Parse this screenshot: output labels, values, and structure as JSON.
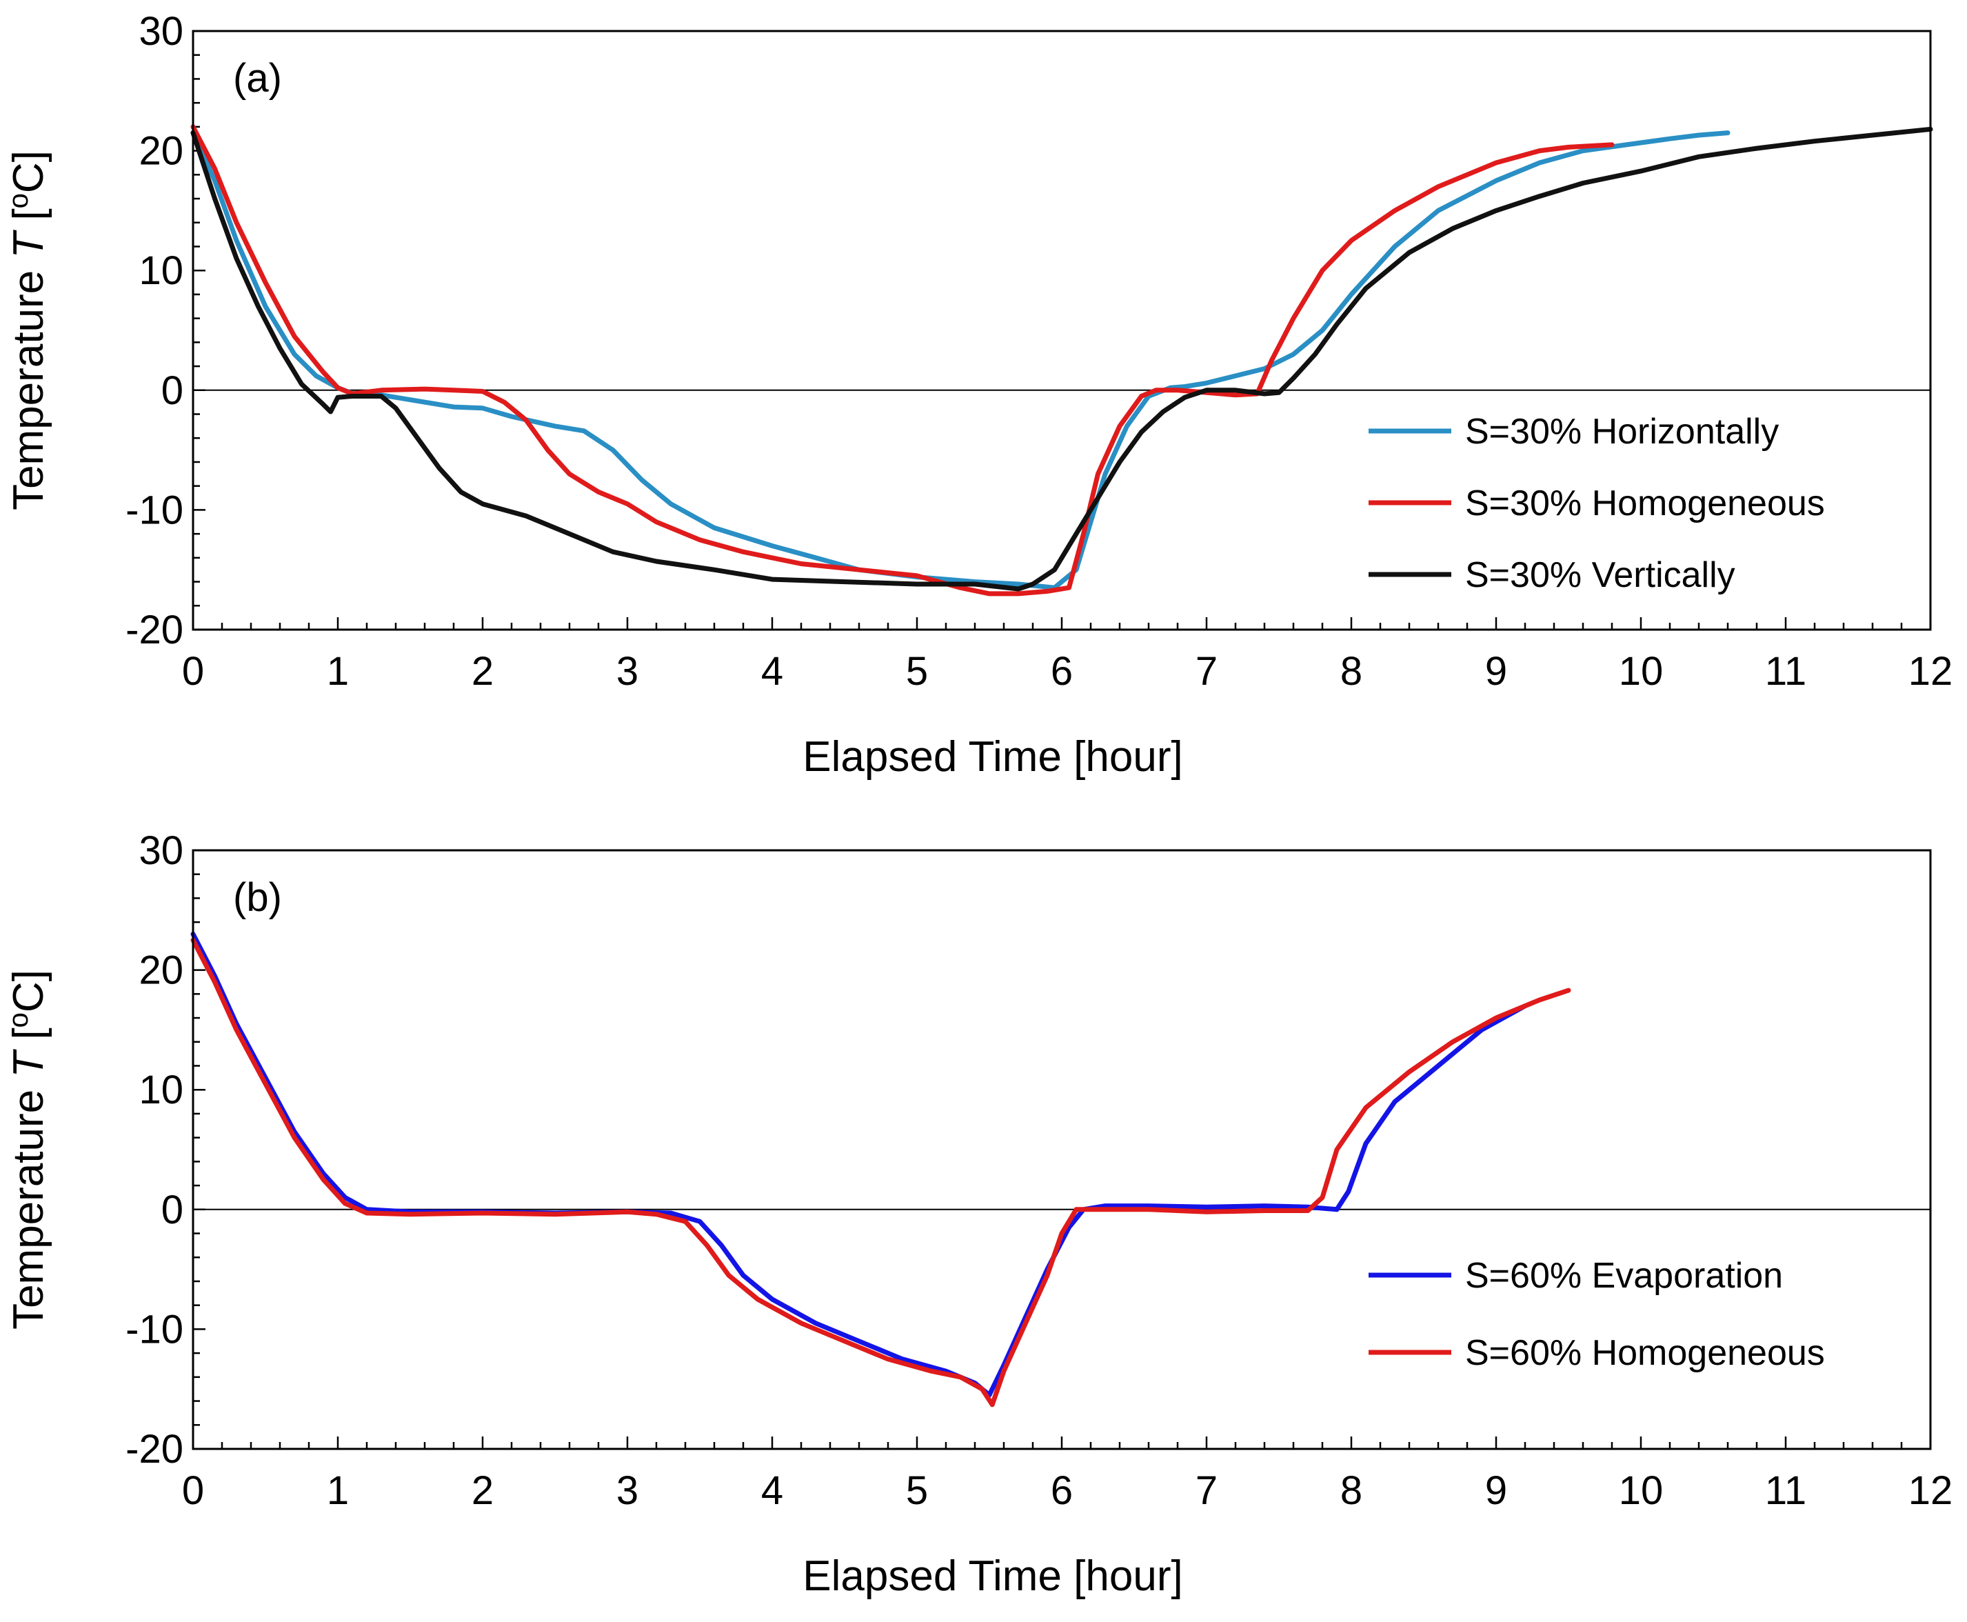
{
  "chart_data": [
    {
      "type": "line",
      "panel_label": "(a)",
      "xlabel": "Elapsed Time [hour]",
      "ylabel_prefix": "Temperature ",
      "ylabel_var": "T",
      "ylabel_unit_open": " [",
      "ylabel_unit_sup": "o",
      "ylabel_unit_close": "C]",
      "xlim": [
        0,
        12
      ],
      "ylim": [
        -20,
        30
      ],
      "xticks": [
        0,
        1,
        2,
        3,
        4,
        5,
        6,
        7,
        8,
        9,
        10,
        11,
        12
      ],
      "yticks": [
        -20,
        -10,
        0,
        10,
        20,
        30
      ],
      "zero_line": true,
      "legend_position": "right",
      "series": [
        {
          "name": "S=30% Horizontally",
          "color": "#2a8fc5",
          "points": [
            [
              0,
              21.5
            ],
            [
              0.15,
              17.5
            ],
            [
              0.3,
              12.5
            ],
            [
              0.5,
              7
            ],
            [
              0.7,
              3
            ],
            [
              0.85,
              1.2
            ],
            [
              1.0,
              0.2
            ],
            [
              1.15,
              -0.5
            ],
            [
              1.3,
              -0.4
            ],
            [
              1.5,
              -0.8
            ],
            [
              1.8,
              -1.4
            ],
            [
              2.0,
              -1.5
            ],
            [
              2.2,
              -2.2
            ],
            [
              2.5,
              -3
            ],
            [
              2.7,
              -3.4
            ],
            [
              2.9,
              -5
            ],
            [
              3.1,
              -7.5
            ],
            [
              3.3,
              -9.5
            ],
            [
              3.6,
              -11.5
            ],
            [
              4.0,
              -13
            ],
            [
              4.3,
              -14
            ],
            [
              4.6,
              -15
            ],
            [
              5.0,
              -15.6
            ],
            [
              5.4,
              -16
            ],
            [
              5.7,
              -16.2
            ],
            [
              5.95,
              -16.5
            ],
            [
              6.1,
              -15
            ],
            [
              6.2,
              -11
            ],
            [
              6.3,
              -7
            ],
            [
              6.45,
              -3
            ],
            [
              6.6,
              -0.5
            ],
            [
              6.75,
              0.2
            ],
            [
              6.85,
              0.3
            ],
            [
              7.0,
              0.6
            ],
            [
              7.2,
              1.2
            ],
            [
              7.4,
              1.8
            ],
            [
              7.6,
              3
            ],
            [
              7.8,
              5
            ],
            [
              8.0,
              8
            ],
            [
              8.3,
              12
            ],
            [
              8.6,
              15
            ],
            [
              9.0,
              17.5
            ],
            [
              9.3,
              19
            ],
            [
              9.6,
              20
            ],
            [
              9.9,
              20.5
            ],
            [
              10.2,
              21
            ],
            [
              10.4,
              21.3
            ],
            [
              10.6,
              21.5
            ]
          ]
        },
        {
          "name": "S=30% Homogeneous",
          "color": "#e01b1b",
          "points": [
            [
              0,
              22
            ],
            [
              0.15,
              18.5
            ],
            [
              0.3,
              14
            ],
            [
              0.5,
              9
            ],
            [
              0.7,
              4.5
            ],
            [
              0.9,
              1.5
            ],
            [
              1.0,
              0.2
            ],
            [
              1.1,
              -0.3
            ],
            [
              1.3,
              0
            ],
            [
              1.6,
              0.1
            ],
            [
              1.8,
              0
            ],
            [
              2.0,
              -0.1
            ],
            [
              2.15,
              -1
            ],
            [
              2.3,
              -2.5
            ],
            [
              2.45,
              -5
            ],
            [
              2.6,
              -7
            ],
            [
              2.8,
              -8.5
            ],
            [
              3.0,
              -9.5
            ],
            [
              3.2,
              -11
            ],
            [
              3.5,
              -12.5
            ],
            [
              3.8,
              -13.5
            ],
            [
              4.2,
              -14.5
            ],
            [
              4.6,
              -15
            ],
            [
              5.0,
              -15.5
            ],
            [
              5.3,
              -16.5
            ],
            [
              5.5,
              -17
            ],
            [
              5.7,
              -17
            ],
            [
              5.9,
              -16.8
            ],
            [
              6.05,
              -16.5
            ],
            [
              6.15,
              -12
            ],
            [
              6.25,
              -7
            ],
            [
              6.4,
              -3
            ],
            [
              6.55,
              -0.5
            ],
            [
              6.65,
              0
            ],
            [
              6.8,
              0
            ],
            [
              7.0,
              -0.2
            ],
            [
              7.2,
              -0.4
            ],
            [
              7.35,
              -0.3
            ],
            [
              7.45,
              2.5
            ],
            [
              7.6,
              6
            ],
            [
              7.8,
              10
            ],
            [
              8.0,
              12.5
            ],
            [
              8.3,
              15
            ],
            [
              8.6,
              17
            ],
            [
              9.0,
              19
            ],
            [
              9.3,
              20
            ],
            [
              9.5,
              20.3
            ],
            [
              9.8,
              20.5
            ]
          ]
        },
        {
          "name": "S=30% Vertically",
          "color": "#111111",
          "points": [
            [
              0,
              21.5
            ],
            [
              0.15,
              16
            ],
            [
              0.3,
              11
            ],
            [
              0.45,
              7
            ],
            [
              0.6,
              3.5
            ],
            [
              0.75,
              0.5
            ],
            [
              0.9,
              -1.2
            ],
            [
              0.95,
              -1.8
            ],
            [
              1.0,
              -0.6
            ],
            [
              1.1,
              -0.5
            ],
            [
              1.3,
              -0.5
            ],
            [
              1.4,
              -1.5
            ],
            [
              1.55,
              -4
            ],
            [
              1.7,
              -6.5
            ],
            [
              1.85,
              -8.5
            ],
            [
              2.0,
              -9.5
            ],
            [
              2.3,
              -10.5
            ],
            [
              2.6,
              -12
            ],
            [
              2.9,
              -13.5
            ],
            [
              3.2,
              -14.3
            ],
            [
              3.6,
              -15
            ],
            [
              4.0,
              -15.8
            ],
            [
              4.5,
              -16
            ],
            [
              5.0,
              -16.2
            ],
            [
              5.4,
              -16.2
            ],
            [
              5.7,
              -16.6
            ],
            [
              5.8,
              -16.2
            ],
            [
              5.95,
              -15
            ],
            [
              6.1,
              -12
            ],
            [
              6.25,
              -9
            ],
            [
              6.4,
              -6
            ],
            [
              6.55,
              -3.5
            ],
            [
              6.7,
              -1.8
            ],
            [
              6.85,
              -0.6
            ],
            [
              7.0,
              0
            ],
            [
              7.2,
              0
            ],
            [
              7.4,
              -0.3
            ],
            [
              7.5,
              -0.2
            ],
            [
              7.6,
              1
            ],
            [
              7.75,
              3
            ],
            [
              7.9,
              5.5
            ],
            [
              8.1,
              8.5
            ],
            [
              8.4,
              11.5
            ],
            [
              8.7,
              13.5
            ],
            [
              9.0,
              15
            ],
            [
              9.3,
              16.2
            ],
            [
              9.6,
              17.3
            ],
            [
              10.0,
              18.3
            ],
            [
              10.4,
              19.5
            ],
            [
              10.8,
              20.2
            ],
            [
              11.2,
              20.8
            ],
            [
              11.6,
              21.3
            ],
            [
              12.0,
              21.8
            ]
          ]
        }
      ]
    },
    {
      "type": "line",
      "panel_label": "(b)",
      "xlabel": "Elapsed Time [hour]",
      "ylabel_prefix": "Temperature ",
      "ylabel_var": "T",
      "ylabel_unit_open": " [",
      "ylabel_unit_sup": "o",
      "ylabel_unit_close": "C]",
      "xlim": [
        0,
        12
      ],
      "ylim": [
        -20,
        30
      ],
      "xticks": [
        0,
        1,
        2,
        3,
        4,
        5,
        6,
        7,
        8,
        9,
        10,
        11,
        12
      ],
      "yticks": [
        -20,
        -10,
        0,
        10,
        20,
        30
      ],
      "zero_line": true,
      "legend_position": "right",
      "series": [
        {
          "name": "S=60% Evaporation",
          "color": "#1414e6",
          "points": [
            [
              0,
              23
            ],
            [
              0.15,
              19.5
            ],
            [
              0.3,
              15.5
            ],
            [
              0.5,
              11
            ],
            [
              0.7,
              6.5
            ],
            [
              0.9,
              3
            ],
            [
              1.05,
              1
            ],
            [
              1.2,
              0
            ],
            [
              1.5,
              -0.2
            ],
            [
              2.0,
              -0.2
            ],
            [
              2.5,
              -0.3
            ],
            [
              3.0,
              -0.2
            ],
            [
              3.3,
              -0.3
            ],
            [
              3.5,
              -1
            ],
            [
              3.65,
              -3
            ],
            [
              3.8,
              -5.5
            ],
            [
              4.0,
              -7.5
            ],
            [
              4.3,
              -9.5
            ],
            [
              4.6,
              -11
            ],
            [
              4.9,
              -12.5
            ],
            [
              5.2,
              -13.5
            ],
            [
              5.4,
              -14.5
            ],
            [
              5.5,
              -15.5
            ],
            [
              5.6,
              -13
            ],
            [
              5.75,
              -9
            ],
            [
              5.9,
              -5
            ],
            [
              6.05,
              -1.5
            ],
            [
              6.15,
              0
            ],
            [
              6.3,
              0.3
            ],
            [
              6.6,
              0.3
            ],
            [
              7.0,
              0.2
            ],
            [
              7.4,
              0.3
            ],
            [
              7.7,
              0.2
            ],
            [
              7.9,
              0
            ],
            [
              7.98,
              1.5
            ],
            [
              8.1,
              5.5
            ],
            [
              8.3,
              9
            ],
            [
              8.6,
              12
            ],
            [
              8.9,
              15
            ],
            [
              9.2,
              17
            ]
          ]
        },
        {
          "name": "S=60% Homogeneous",
          "color": "#e01b1b",
          "points": [
            [
              0,
              22.5
            ],
            [
              0.15,
              19
            ],
            [
              0.3,
              15
            ],
            [
              0.5,
              10.5
            ],
            [
              0.7,
              6
            ],
            [
              0.9,
              2.5
            ],
            [
              1.05,
              0.5
            ],
            [
              1.2,
              -0.3
            ],
            [
              1.5,
              -0.4
            ],
            [
              2.0,
              -0.3
            ],
            [
              2.5,
              -0.4
            ],
            [
              3.0,
              -0.2
            ],
            [
              3.2,
              -0.4
            ],
            [
              3.4,
              -1
            ],
            [
              3.55,
              -3
            ],
            [
              3.7,
              -5.5
            ],
            [
              3.9,
              -7.5
            ],
            [
              4.2,
              -9.5
            ],
            [
              4.5,
              -11
            ],
            [
              4.8,
              -12.5
            ],
            [
              5.1,
              -13.5
            ],
            [
              5.3,
              -14
            ],
            [
              5.45,
              -15
            ],
            [
              5.52,
              -16.3
            ],
            [
              5.6,
              -13.5
            ],
            [
              5.75,
              -9.5
            ],
            [
              5.9,
              -5.5
            ],
            [
              6.0,
              -2
            ],
            [
              6.1,
              0
            ],
            [
              6.3,
              0
            ],
            [
              6.6,
              0
            ],
            [
              7.0,
              -0.2
            ],
            [
              7.4,
              -0.1
            ],
            [
              7.7,
              -0.1
            ],
            [
              7.8,
              1
            ],
            [
              7.9,
              5
            ],
            [
              8.1,
              8.5
            ],
            [
              8.4,
              11.5
            ],
            [
              8.7,
              14
            ],
            [
              9.0,
              16
            ],
            [
              9.3,
              17.5
            ],
            [
              9.5,
              18.3
            ]
          ]
        }
      ]
    }
  ]
}
